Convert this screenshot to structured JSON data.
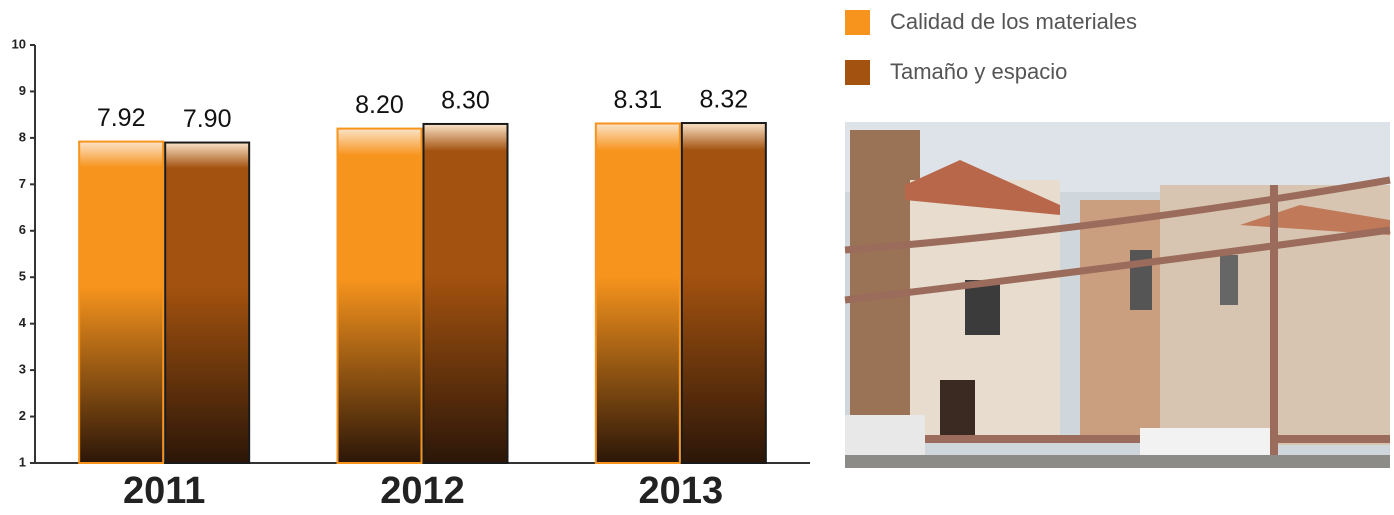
{
  "chart_data": {
    "type": "bar",
    "categories": [
      "2011",
      "2012",
      "2013"
    ],
    "series": [
      {
        "name": "Calidad de los materiales",
        "color": "#f7941d",
        "values": [
          7.92,
          8.2,
          8.31
        ],
        "value_labels": [
          "7.92",
          "8.20",
          "8.31"
        ]
      },
      {
        "name": "Tamaño y espacio",
        "color": "#a3520f",
        "values": [
          7.9,
          8.3,
          8.32
        ],
        "value_labels": [
          "7.90",
          "8.30",
          "8.32"
        ]
      }
    ],
    "ylim": [
      1,
      10
    ],
    "yticks": [
      1,
      2,
      3,
      4,
      5,
      6,
      7,
      8,
      9,
      10
    ],
    "grid": false,
    "legend": "top-right"
  }
}
